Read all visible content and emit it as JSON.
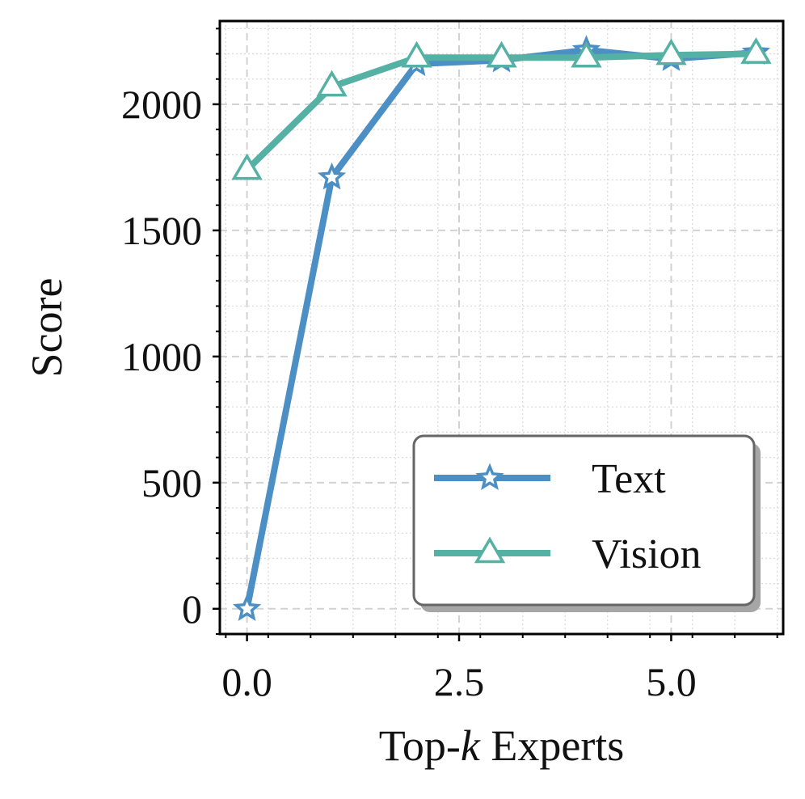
{
  "chart_data": {
    "type": "line",
    "xlabel": {
      "prefix": "Top-",
      "italic": "k",
      "suffix": " Experts"
    },
    "ylabel": "Score",
    "xlim": [
      -0.32,
      6.32
    ],
    "ylim": [
      -100,
      2330
    ],
    "xticks": [
      0.0,
      2.5,
      5.0
    ],
    "xtick_labels": [
      "0.0",
      "2.5",
      "5.0"
    ],
    "yticks": [
      0,
      500,
      1000,
      1500,
      2000
    ],
    "ytick_labels": [
      "0",
      "500",
      "1000",
      "1500",
      "2000"
    ],
    "grid": true,
    "legend_position": "lower-right",
    "x": [
      0,
      1,
      2,
      3,
      4,
      5,
      6
    ],
    "series": [
      {
        "name": "Text",
        "values": [
          0,
          1710,
          2160,
          2175,
          2215,
          2180,
          2205
        ],
        "color": "#4C8FC4",
        "marker": "star"
      },
      {
        "name": "Vision",
        "values": [
          1740,
          2070,
          2185,
          2185,
          2185,
          2195,
          2200
        ],
        "color": "#56B1A5",
        "marker": "triangle"
      }
    ]
  }
}
